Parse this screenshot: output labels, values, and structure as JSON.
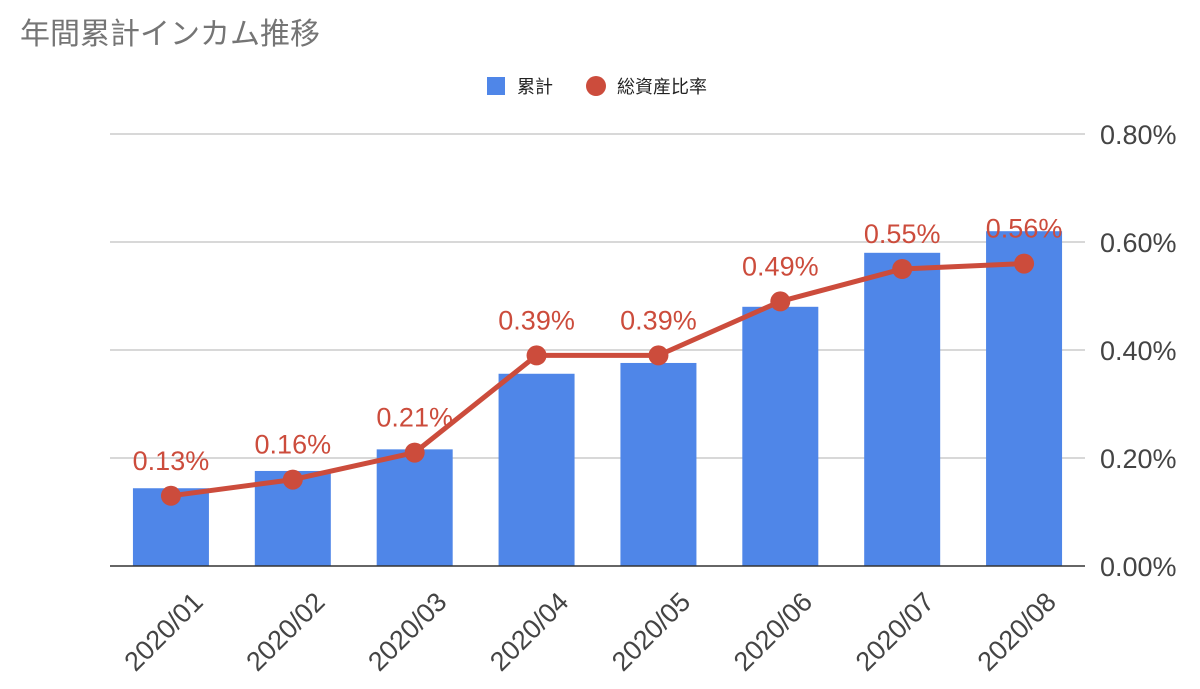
{
  "chart_data": {
    "type": "bar",
    "title": "年間累計インカム推移",
    "categories": [
      "2020/01",
      "2020/02",
      "2020/03",
      "2020/04",
      "2020/05",
      "2020/06",
      "2020/07",
      "2020/08"
    ],
    "series": [
      {
        "name": "累計",
        "type": "bar",
        "axis": "unlabeled-left",
        "values": [
          0.36,
          0.44,
          0.54,
          0.89,
          0.94,
          1.2,
          1.45,
          1.55
        ]
      },
      {
        "name": "総資産比率",
        "type": "line",
        "axis": "right",
        "values": [
          0.13,
          0.16,
          0.21,
          0.39,
          0.39,
          0.49,
          0.55,
          0.56
        ],
        "labels": [
          "0.13%",
          "0.16%",
          "0.21%",
          "0.39%",
          "0.39%",
          "0.49%",
          "0.55%",
          "0.56%"
        ]
      }
    ],
    "right_axis": {
      "ticks": [
        "0.00%",
        "0.20%",
        "0.40%",
        "0.60%",
        "0.80%"
      ],
      "ylim": [
        0,
        0.8
      ]
    },
    "left_axis": {
      "ylim": [
        0,
        2.0
      ]
    },
    "grid": true,
    "legend_position": "top-center"
  },
  "colors": {
    "bar": "#4f86e8",
    "line": "#cc4c3c",
    "grid": "#cccccc",
    "axis": "#333333",
    "title": "#757575",
    "tick": "#444444"
  }
}
